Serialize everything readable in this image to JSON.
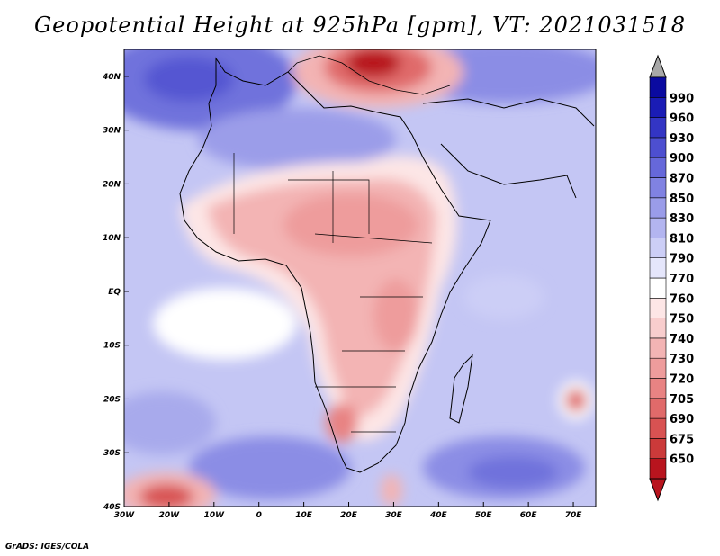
{
  "title": "Geopotential Height at 925hPa [gpm], VT: 2021031518",
  "credit": "GrADS: IGES/COLA",
  "map": {
    "region": "Africa",
    "variable": "Geopotential Height",
    "level": "925hPa",
    "units": "gpm",
    "valid_time": "2021031518",
    "lon_range": [
      -30,
      75
    ],
    "lat_range": [
      -40,
      45
    ],
    "lat_ticks": [
      {
        "value": 40,
        "label": "40N"
      },
      {
        "value": 30,
        "label": "30N"
      },
      {
        "value": 20,
        "label": "20N"
      },
      {
        "value": 10,
        "label": "10N"
      },
      {
        "value": 0,
        "label": "EQ"
      },
      {
        "value": -10,
        "label": "10S"
      },
      {
        "value": -20,
        "label": "20S"
      },
      {
        "value": -30,
        "label": "30S"
      },
      {
        "value": -40,
        "label": "40S"
      }
    ],
    "lon_ticks": [
      {
        "value": -30,
        "label": "30W"
      },
      {
        "value": -20,
        "label": "20W"
      },
      {
        "value": -10,
        "label": "10W"
      },
      {
        "value": 0,
        "label": "0"
      },
      {
        "value": 10,
        "label": "10E"
      },
      {
        "value": 20,
        "label": "20E"
      },
      {
        "value": 30,
        "label": "30E"
      },
      {
        "value": 40,
        "label": "40E"
      },
      {
        "value": 50,
        "label": "50E"
      },
      {
        "value": 60,
        "label": "60E"
      },
      {
        "value": 70,
        "label": "70E"
      }
    ]
  },
  "colorbar": {
    "levels": [
      "650",
      "675",
      "690",
      "705",
      "720",
      "730",
      "740",
      "750",
      "760",
      "770",
      "790",
      "810",
      "830",
      "850",
      "870",
      "900",
      "930",
      "960",
      "990"
    ],
    "colors": [
      "#b8141e",
      "#cb3a3a",
      "#d85252",
      "#e06a6a",
      "#e88383",
      "#ee9c9c",
      "#f3b4b4",
      "#f8cdcd",
      "#fde6e6",
      "#ffffff",
      "#e5e6fb",
      "#ccceF6",
      "#b3b5f0",
      "#9a9ce9",
      "#8082e2",
      "#6668da",
      "#4d4fd0",
      "#3335c4",
      "#1a1cb5",
      "#0a0aa0"
    ],
    "top_arrow_color": "#a8a8a8",
    "bottom_arrow_color": "#b8141e"
  }
}
